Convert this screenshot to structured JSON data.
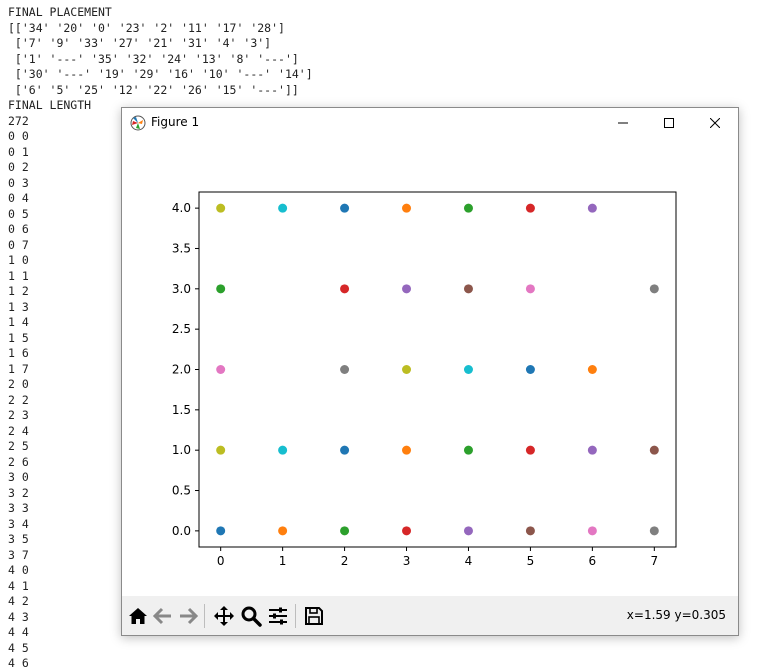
{
  "console": {
    "lines": [
      "FINAL PLACEMENT",
      "[['34' '20' '0' '23' '2' '11' '17' '28']",
      " ['7' '9' '33' '27' '21' '31' '4' '3']",
      " ['1' '---' '35' '32' '24' '13' '8' '---']",
      " ['30' '---' '19' '29' '16' '10' '---' '14']",
      " ['6' '5' '25' '12' '22' '26' '15' '---']]",
      "FINAL LENGTH",
      "272",
      "0 0",
      "0 1",
      "0 2",
      "0 3",
      "0 4",
      "0 5",
      "0 6",
      "0 7",
      "1 0",
      "1 1",
      "1 2",
      "1 3",
      "1 4",
      "1 5",
      "1 6",
      "1 7",
      "2 0",
      "2 2",
      "2 3",
      "2 4",
      "2 5",
      "2 6",
      "3 0",
      "3 2",
      "3 3",
      "3 4",
      "3 5",
      "3 7",
      "4 0",
      "4 1",
      "4 2",
      "4 3",
      "4 4",
      "4 5",
      "4 6"
    ]
  },
  "window": {
    "title": "Figure 1",
    "minimize_icon": "minimize-icon",
    "maximize_icon": "maximize-icon",
    "close_icon": "close-icon"
  },
  "toolbar": {
    "tools": [
      "home-icon",
      "back-arrow-icon",
      "forward-arrow-icon",
      "pan-icon",
      "zoom-icon",
      "configure-subplots-icon",
      "save-icon"
    ],
    "coords": "x=1.59 y=0.305"
  },
  "chart_data": {
    "type": "scatter",
    "xlim": [
      -0.35,
      7.35
    ],
    "ylim": [
      -0.2,
      4.2
    ],
    "xticks": [
      "0",
      "1",
      "2",
      "3",
      "4",
      "5",
      "6",
      "7"
    ],
    "yticks": [
      "0.0",
      "0.5",
      "1.0",
      "1.5",
      "2.0",
      "2.5",
      "3.0",
      "3.5",
      "4.0"
    ],
    "grid": false,
    "points": [
      {
        "x": 0,
        "y": 0,
        "color": "#1f77b4"
      },
      {
        "x": 1,
        "y": 0,
        "color": "#ff7f0e"
      },
      {
        "x": 2,
        "y": 0,
        "color": "#2ca02c"
      },
      {
        "x": 3,
        "y": 0,
        "color": "#d62728"
      },
      {
        "x": 4,
        "y": 0,
        "color": "#9467bd"
      },
      {
        "x": 5,
        "y": 0,
        "color": "#8c564b"
      },
      {
        "x": 6,
        "y": 0,
        "color": "#e377c2"
      },
      {
        "x": 7,
        "y": 0,
        "color": "#7f7f7f"
      },
      {
        "x": 0,
        "y": 1,
        "color": "#bcbd22"
      },
      {
        "x": 1,
        "y": 1,
        "color": "#17becf"
      },
      {
        "x": 2,
        "y": 1,
        "color": "#1f77b4"
      },
      {
        "x": 3,
        "y": 1,
        "color": "#ff7f0e"
      },
      {
        "x": 4,
        "y": 1,
        "color": "#2ca02c"
      },
      {
        "x": 5,
        "y": 1,
        "color": "#d62728"
      },
      {
        "x": 6,
        "y": 1,
        "color": "#9467bd"
      },
      {
        "x": 7,
        "y": 1,
        "color": "#8c564b"
      },
      {
        "x": 0,
        "y": 2,
        "color": "#e377c2"
      },
      {
        "x": 2,
        "y": 2,
        "color": "#7f7f7f"
      },
      {
        "x": 3,
        "y": 2,
        "color": "#bcbd22"
      },
      {
        "x": 4,
        "y": 2,
        "color": "#17becf"
      },
      {
        "x": 5,
        "y": 2,
        "color": "#1f77b4"
      },
      {
        "x": 6,
        "y": 2,
        "color": "#ff7f0e"
      },
      {
        "x": 0,
        "y": 3,
        "color": "#2ca02c"
      },
      {
        "x": 2,
        "y": 3,
        "color": "#d62728"
      },
      {
        "x": 3,
        "y": 3,
        "color": "#9467bd"
      },
      {
        "x": 4,
        "y": 3,
        "color": "#8c564b"
      },
      {
        "x": 5,
        "y": 3,
        "color": "#e377c2"
      },
      {
        "x": 7,
        "y": 3,
        "color": "#7f7f7f"
      },
      {
        "x": 0,
        "y": 4,
        "color": "#bcbd22"
      },
      {
        "x": 1,
        "y": 4,
        "color": "#17becf"
      },
      {
        "x": 2,
        "y": 4,
        "color": "#1f77b4"
      },
      {
        "x": 3,
        "y": 4,
        "color": "#ff7f0e"
      },
      {
        "x": 4,
        "y": 4,
        "color": "#2ca02c"
      },
      {
        "x": 5,
        "y": 4,
        "color": "#d62728"
      },
      {
        "x": 6,
        "y": 4,
        "color": "#9467bd"
      }
    ]
  }
}
